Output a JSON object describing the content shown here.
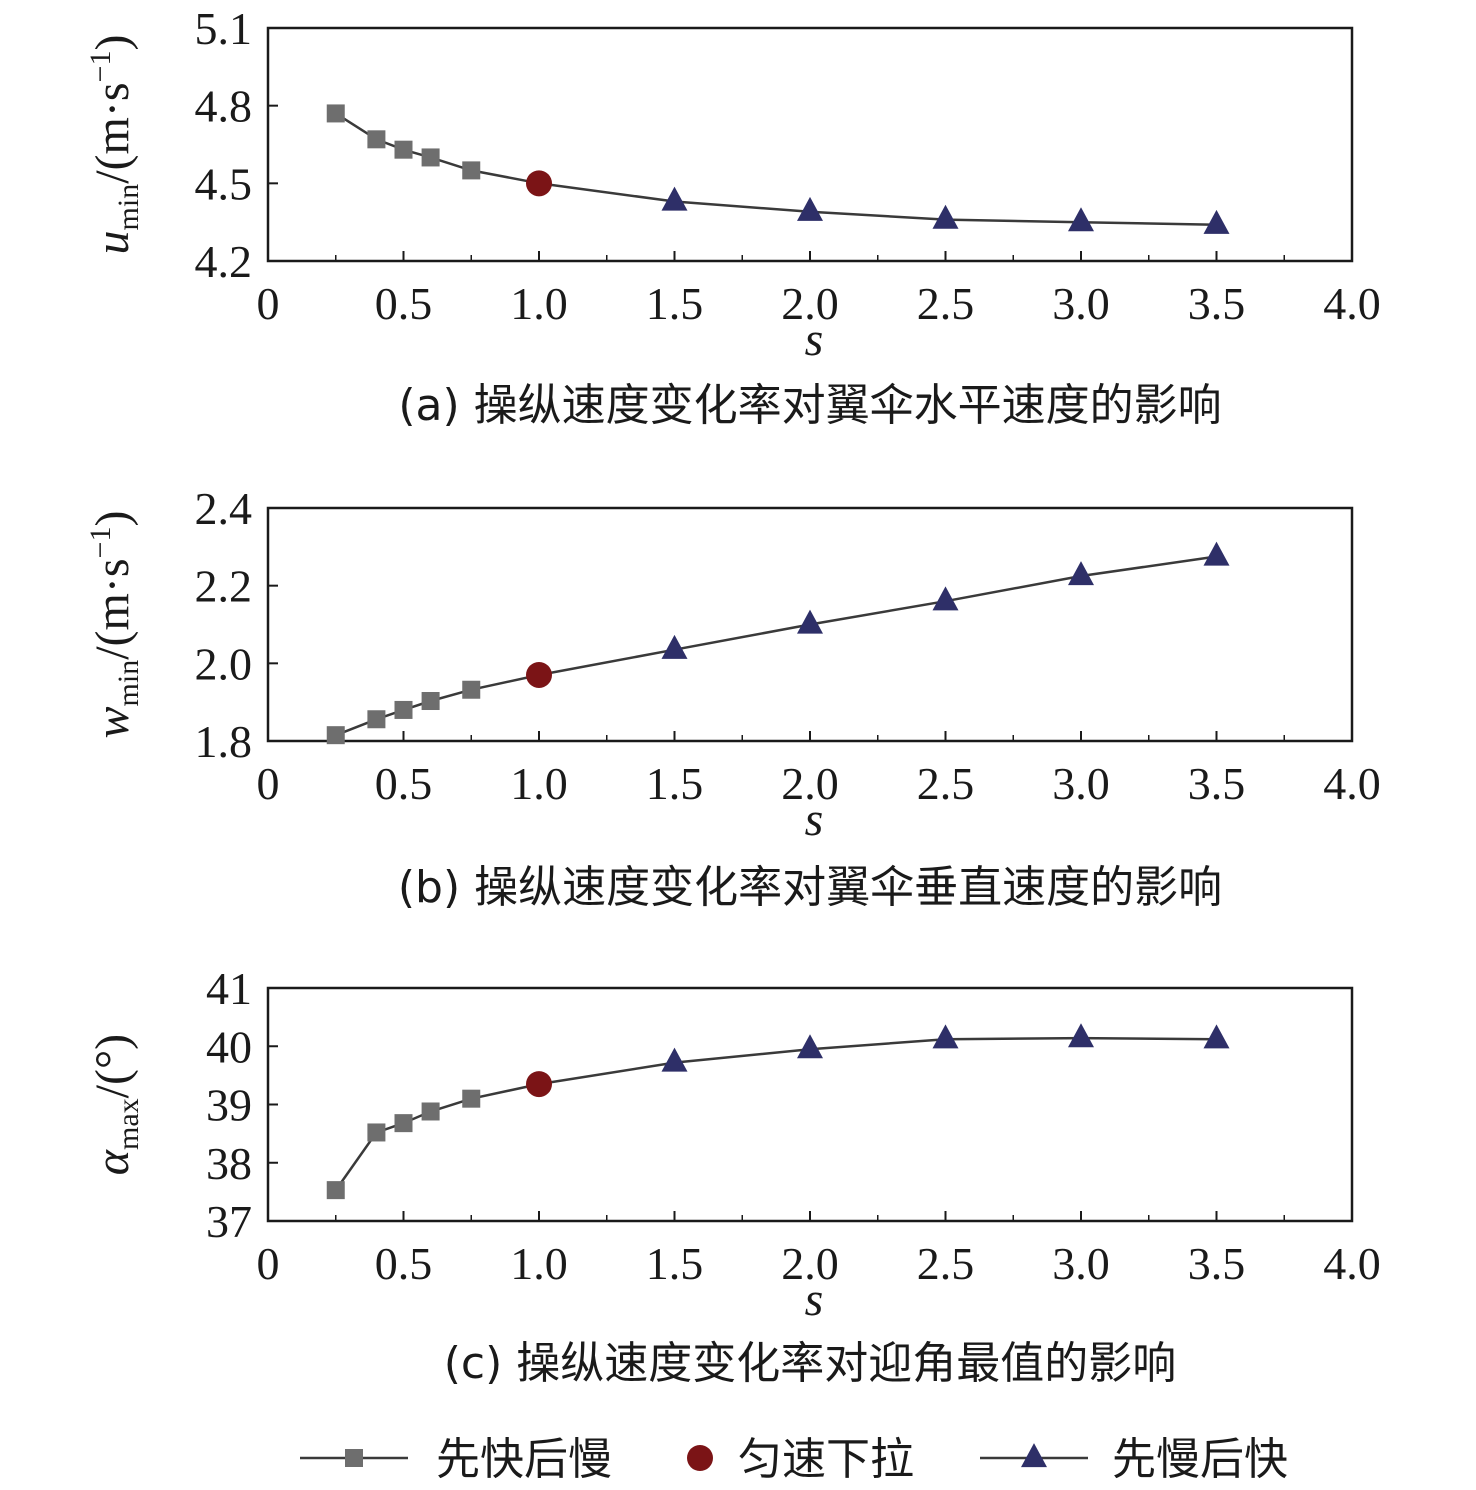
{
  "colors": {
    "square": "#6e6e6e",
    "circle": "#7b1416",
    "triangle": "#2e2f68",
    "line": "#3a3a3a",
    "axis": "#1a1a1a"
  },
  "legend": [
    {
      "key": "fast_slow",
      "label": "先快后慢",
      "marker": "square"
    },
    {
      "key": "uniform",
      "label": "匀速下拉",
      "marker": "circle"
    },
    {
      "key": "slow_fast",
      "label": "先慢后快",
      "marker": "triangle"
    }
  ],
  "chart_data": [
    {
      "type": "line",
      "caption": "(a) 操纵速度变化率对翼伞水平速度的影响",
      "xlabel": "s",
      "ylabel": {
        "base": "u",
        "sub": "min",
        "unit": "/(m·s",
        "sup": "−1",
        "close": ")"
      },
      "xlim": [
        0,
        4.0
      ],
      "ylim": [
        4.2,
        5.1
      ],
      "xticks": [
        0,
        0.5,
        1.0,
        1.5,
        2.0,
        2.5,
        3.0,
        3.5,
        4.0
      ],
      "xtick_labels": [
        "0",
        "0.5",
        "1.0",
        "1.5",
        "2.0",
        "2.5",
        "3.0",
        "3.5",
        "4.0"
      ],
      "yticks": [
        4.2,
        4.5,
        4.8,
        5.1
      ],
      "ytick_labels": [
        "4.2",
        "4.5",
        "4.8",
        "5.1"
      ],
      "grid": false,
      "series": [
        {
          "key": "fast_slow",
          "marker": "square",
          "x": [
            0.25,
            0.4,
            0.5,
            0.6,
            0.75
          ],
          "y": [
            4.77,
            4.67,
            4.63,
            4.6,
            4.55
          ]
        },
        {
          "key": "uniform",
          "marker": "circle",
          "x": [
            1.0
          ],
          "y": [
            4.5
          ]
        },
        {
          "key": "slow_fast",
          "marker": "triangle",
          "x": [
            1.5,
            2.0,
            2.5,
            3.0,
            3.5
          ],
          "y": [
            4.43,
            4.39,
            4.36,
            4.35,
            4.34
          ]
        }
      ]
    },
    {
      "type": "line",
      "caption": "(b) 操纵速度变化率对翼伞垂直速度的影响",
      "xlabel": "s",
      "ylabel": {
        "base": "w",
        "sub": "min",
        "unit": "/(m·s",
        "sup": "−1",
        "close": ")"
      },
      "xlim": [
        0,
        4.0
      ],
      "ylim": [
        1.8,
        2.4
      ],
      "xticks": [
        0,
        0.5,
        1.0,
        1.5,
        2.0,
        2.5,
        3.0,
        3.5,
        4.0
      ],
      "xtick_labels": [
        "0",
        "0.5",
        "1.0",
        "1.5",
        "2.0",
        "2.5",
        "3.0",
        "3.5",
        "4.0"
      ],
      "yticks": [
        1.8,
        2.0,
        2.2,
        2.4
      ],
      "ytick_labels": [
        "1.8",
        "2.0",
        "2.2",
        "2.4"
      ],
      "grid": false,
      "series": [
        {
          "key": "fast_slow",
          "marker": "square",
          "x": [
            0.25,
            0.4,
            0.5,
            0.6,
            0.75
          ],
          "y": [
            1.815,
            1.856,
            1.88,
            1.903,
            1.932
          ]
        },
        {
          "key": "uniform",
          "marker": "circle",
          "x": [
            1.0
          ],
          "y": [
            1.97
          ]
        },
        {
          "key": "slow_fast",
          "marker": "triangle",
          "x": [
            1.5,
            2.0,
            2.5,
            3.0,
            3.5
          ],
          "y": [
            2.035,
            2.1,
            2.16,
            2.225,
            2.275
          ]
        }
      ]
    },
    {
      "type": "line",
      "caption": "(c) 操纵速度变化率对迎角最值的影响",
      "xlabel": "s",
      "ylabel": {
        "base": "α",
        "sub": "max",
        "unit": "/(°)",
        "sup": "",
        "close": ""
      },
      "xlim": [
        0,
        4.0
      ],
      "ylim": [
        37,
        41
      ],
      "xticks": [
        0,
        0.5,
        1.0,
        1.5,
        2.0,
        2.5,
        3.0,
        3.5,
        4.0
      ],
      "xtick_labels": [
        "0",
        "0.5",
        "1.0",
        "1.5",
        "2.0",
        "2.5",
        "3.0",
        "3.5",
        "4.0"
      ],
      "yticks": [
        37,
        38,
        39,
        40,
        41
      ],
      "ytick_labels": [
        "37",
        "38",
        "39",
        "40",
        "41"
      ],
      "grid": false,
      "series": [
        {
          "key": "fast_slow",
          "marker": "square",
          "x": [
            0.25,
            0.4,
            0.5,
            0.6,
            0.75
          ],
          "y": [
            37.53,
            38.52,
            38.68,
            38.88,
            39.1
          ]
        },
        {
          "key": "uniform",
          "marker": "circle",
          "x": [
            1.0
          ],
          "y": [
            39.35
          ]
        },
        {
          "key": "slow_fast",
          "marker": "triangle",
          "x": [
            1.5,
            2.0,
            2.5,
            3.0,
            3.5
          ],
          "y": [
            39.72,
            39.95,
            40.12,
            40.14,
            40.12
          ]
        }
      ]
    }
  ]
}
